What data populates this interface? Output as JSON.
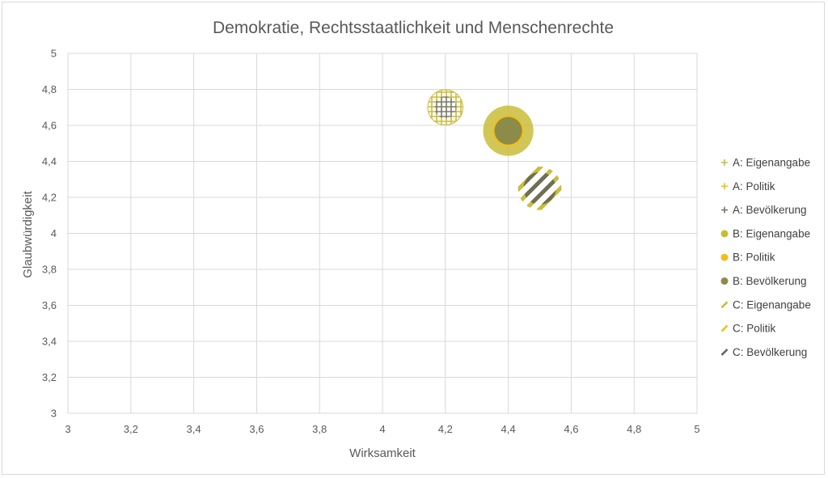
{
  "chart_data": {
    "type": "scatter",
    "title": "Demokratie, Rechtsstaatlichkeit und Menschenrechte",
    "xlabel": "Wirksamkeit",
    "ylabel": "Glaubwürdigkeit",
    "xlim": [
      3,
      5
    ],
    "ylim": [
      3,
      5
    ],
    "x_ticks": [
      "3",
      "3,2",
      "3,4",
      "3,6",
      "3,8",
      "4",
      "4,2",
      "4,4",
      "4,6",
      "4,8",
      "5"
    ],
    "y_ticks": [
      "3",
      "3,2",
      "3,4",
      "3,6",
      "3,8",
      "4",
      "4,2",
      "4,4",
      "4,6",
      "4,8",
      "5"
    ],
    "grid": true,
    "legend_position": "right",
    "colors": {
      "olive_light": "#c9bd3a",
      "yellow": "#f2be1e",
      "olive_dark": "#8c8c48",
      "gray_dark": "#6f6f52"
    },
    "series": [
      {
        "name": "A: Eigenangabe",
        "x": 4.2,
        "y": 4.7,
        "size": 0.112,
        "style": "grid",
        "color": "#c9bd3a"
      },
      {
        "name": "A: Politik",
        "x": 4.2,
        "y": 4.7,
        "size": 0.09,
        "style": "grid",
        "color": "#f2be1e"
      },
      {
        "name": "A: Bevölkerung",
        "x": 4.2,
        "y": 4.7,
        "size": 0.07,
        "style": "grid",
        "color": "#7a7a62"
      },
      {
        "name": "B: Eigenangabe",
        "x": 4.4,
        "y": 4.57,
        "size": 0.16,
        "style": "solid",
        "color": "#c9bd3a"
      },
      {
        "name": "B: Politik",
        "x": 4.4,
        "y": 4.57,
        "size": 0.1,
        "style": "solid",
        "color": "#f2be1e"
      },
      {
        "name": "B: Bevölkerung",
        "x": 4.4,
        "y": 4.57,
        "size": 0.088,
        "style": "solid",
        "color": "#8c8c48"
      },
      {
        "name": "C: Eigenangabe",
        "x": 4.5,
        "y": 4.25,
        "size": 0.12,
        "style": "stripe",
        "color": "#c9bd3a"
      },
      {
        "name": "C: Politik",
        "x": 4.5,
        "y": 4.25,
        "size": 0.12,
        "style": "stripe",
        "color": "#f2be1e"
      },
      {
        "name": "C: Bevölkerung",
        "x": 4.5,
        "y": 4.25,
        "size": 0.09,
        "style": "stripe",
        "color": "#5f6b55"
      }
    ]
  }
}
